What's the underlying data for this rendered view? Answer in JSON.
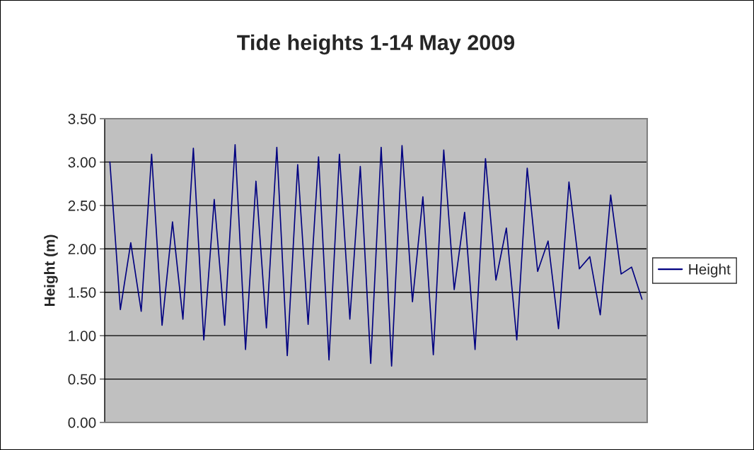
{
  "chart_data": {
    "type": "line",
    "title": "Tide heights 1-14 May 2009",
    "ylabel": "Height (m)",
    "categories": [
      null,
      null,
      null,
      null,
      null,
      null,
      null,
      null,
      null,
      null,
      null,
      null,
      null,
      null,
      null,
      null,
      null,
      null,
      null,
      null,
      null,
      null,
      null,
      null,
      null,
      null,
      null,
      null,
      null,
      null,
      null,
      null,
      null,
      null,
      null,
      null,
      null,
      null,
      null,
      null,
      null,
      null,
      null,
      null,
      null,
      null,
      null,
      null,
      null,
      null,
      null,
      null
    ],
    "series": [
      {
        "name": "Height",
        "color": "#000080",
        "values": [
          3.0,
          1.3,
          2.07,
          1.28,
          3.09,
          1.12,
          2.31,
          1.19,
          3.16,
          0.95,
          2.57,
          1.12,
          3.2,
          0.84,
          2.78,
          1.09,
          3.17,
          0.77,
          2.97,
          1.13,
          3.06,
          0.72,
          3.09,
          1.19,
          2.95,
          0.68,
          3.17,
          0.65,
          3.19,
          1.39,
          2.6,
          0.78,
          3.14,
          1.53,
          2.42,
          0.84,
          3.04,
          1.64,
          2.24,
          0.95,
          2.93,
          1.74,
          2.09,
          1.08,
          2.77,
          1.77,
          1.91,
          1.24,
          2.62,
          1.71,
          1.79,
          1.42
        ]
      }
    ],
    "ylim": [
      0,
      3.5
    ],
    "yticks": [
      {
        "value": 0,
        "label": "0.00"
      },
      {
        "value": 0.5,
        "label": "0.50"
      },
      {
        "value": 1,
        "label": "1.00"
      },
      {
        "value": 1.5,
        "label": "1.50"
      },
      {
        "value": 2,
        "label": "2.00"
      },
      {
        "value": 2.5,
        "label": "2.50"
      },
      {
        "value": 3,
        "label": "3.00"
      },
      {
        "value": 3.5,
        "label": "3.50"
      }
    ],
    "grid": "y",
    "legend": "right",
    "tick_labels": "y",
    "marker": "none",
    "line_style": "solid"
  }
}
